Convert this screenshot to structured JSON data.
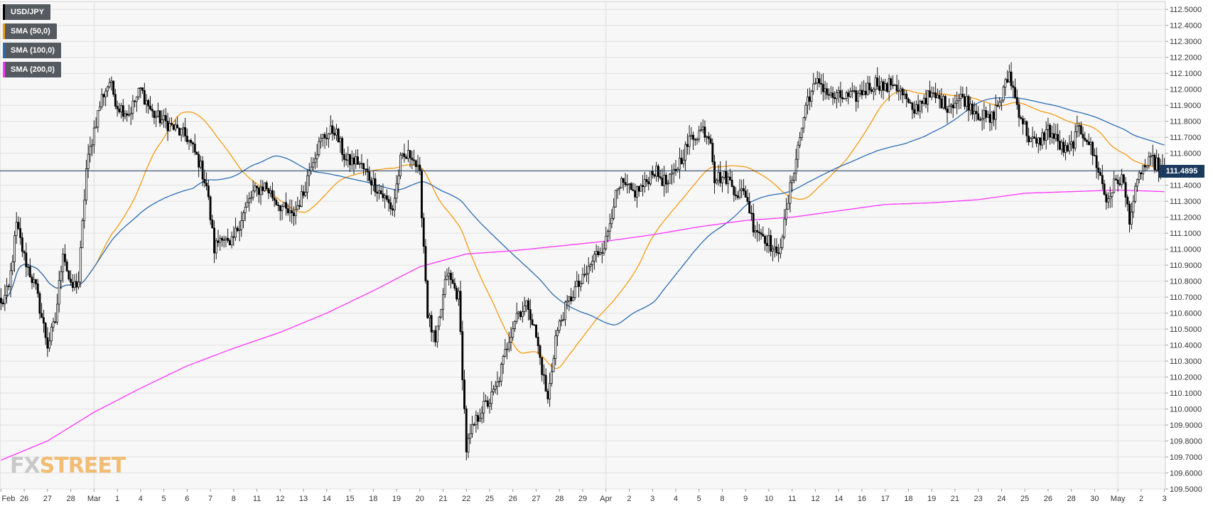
{
  "legend": [
    {
      "label": "USD/JPY",
      "color": "#000000"
    },
    {
      "label": "SMA (50,0)",
      "color": "#f39c12"
    },
    {
      "label": "SMA (100,0)",
      "color": "#2e6db4"
    },
    {
      "label": "SMA (200,0)",
      "color": "#ff33ff"
    }
  ],
  "logo": {
    "fx": "FX",
    "street": "STREET"
  },
  "current_price": {
    "label": "111.4895",
    "value": 111.4895
  },
  "chart_data": {
    "type": "candlestick",
    "title": "",
    "xlabel": "",
    "ylabel": "",
    "ylim": [
      109.5,
      112.55
    ],
    "grid": true,
    "legend_position": "top-left",
    "y_ticks": [
      "109.5000",
      "109.6000",
      "109.7000",
      "109.8000",
      "109.9000",
      "110.0000",
      "110.1000",
      "110.2000",
      "110.3000",
      "110.4000",
      "110.5000",
      "110.6000",
      "110.7000",
      "110.8000",
      "110.9000",
      "111.0000",
      "111.1000",
      "111.2000",
      "111.3000",
      "111.4000",
      "111.5000",
      "111.6000",
      "111.7000",
      "111.8000",
      "111.9000",
      "112.0000",
      "112.1000",
      "112.2000",
      "112.3000",
      "112.4000",
      "112.5000"
    ],
    "x_ticks": [
      "Feb",
      "26",
      "27",
      "28",
      "Mar",
      "1",
      "4",
      "5",
      "6",
      "7",
      "8",
      "11",
      "12",
      "13",
      "14",
      "15",
      "18",
      "19",
      "20",
      "21",
      "22",
      "25",
      "26",
      "27",
      "28",
      "29",
      "Apr",
      "2",
      "3",
      "4",
      "5",
      "8",
      "9",
      "10",
      "11",
      "12",
      "14",
      "16",
      "17",
      "18",
      "19",
      "21",
      "23",
      "24",
      "25",
      "26",
      "28",
      "30",
      "May",
      "2",
      "3"
    ],
    "x_tick_index": [
      0,
      12,
      24,
      36,
      48,
      60,
      72,
      84,
      96,
      108,
      120,
      132,
      144,
      156,
      168,
      180,
      192,
      204,
      216,
      228,
      240,
      252,
      264,
      276,
      288,
      300,
      312,
      324,
      336,
      348,
      360,
      372,
      384,
      396,
      408,
      420,
      432,
      444,
      456,
      468,
      480,
      492,
      504,
      516,
      528,
      540,
      552,
      564,
      576,
      588,
      600
    ],
    "period_separators": [
      48,
      312,
      576
    ],
    "series": [
      {
        "name": "USD/JPY",
        "kind": "price",
        "anchors": [
          [
            0,
            110.65
          ],
          [
            4,
            110.75
          ],
          [
            8,
            111.15
          ],
          [
            12,
            110.95
          ],
          [
            18,
            110.75
          ],
          [
            24,
            110.4
          ],
          [
            28,
            110.55
          ],
          [
            32,
            111.0
          ],
          [
            36,
            110.75
          ],
          [
            40,
            110.8
          ],
          [
            44,
            111.5
          ],
          [
            48,
            111.75
          ],
          [
            52,
            111.95
          ],
          [
            56,
            112.05
          ],
          [
            60,
            111.9
          ],
          [
            66,
            111.85
          ],
          [
            72,
            112.0
          ],
          [
            78,
            111.85
          ],
          [
            84,
            111.8
          ],
          [
            90,
            111.75
          ],
          [
            96,
            111.7
          ],
          [
            102,
            111.55
          ],
          [
            106,
            111.4
          ],
          [
            110,
            111.0
          ],
          [
            114,
            111.1
          ],
          [
            118,
            111.0
          ],
          [
            124,
            111.2
          ],
          [
            130,
            111.35
          ],
          [
            136,
            111.4
          ],
          [
            142,
            111.3
          ],
          [
            150,
            111.2
          ],
          [
            156,
            111.35
          ],
          [
            160,
            111.55
          ],
          [
            166,
            111.7
          ],
          [
            172,
            111.75
          ],
          [
            178,
            111.55
          ],
          [
            184,
            111.55
          ],
          [
            190,
            111.45
          ],
          [
            196,
            111.35
          ],
          [
            202,
            111.25
          ],
          [
            206,
            111.55
          ],
          [
            212,
            111.6
          ],
          [
            216,
            111.45
          ],
          [
            220,
            110.6
          ],
          [
            224,
            110.4
          ],
          [
            230,
            110.85
          ],
          [
            236,
            110.7
          ],
          [
            240,
            109.75
          ],
          [
            244,
            109.9
          ],
          [
            248,
            110.0
          ],
          [
            252,
            110.05
          ],
          [
            256,
            110.15
          ],
          [
            262,
            110.45
          ],
          [
            266,
            110.6
          ],
          [
            272,
            110.65
          ],
          [
            276,
            110.45
          ],
          [
            282,
            110.05
          ],
          [
            286,
            110.45
          ],
          [
            290,
            110.6
          ],
          [
            296,
            110.75
          ],
          [
            300,
            110.8
          ],
          [
            306,
            110.95
          ],
          [
            312,
            111.05
          ],
          [
            316,
            111.3
          ],
          [
            320,
            111.4
          ],
          [
            326,
            111.35
          ],
          [
            332,
            111.4
          ],
          [
            336,
            111.5
          ],
          [
            340,
            111.45
          ],
          [
            344,
            111.4
          ],
          [
            350,
            111.55
          ],
          [
            356,
            111.7
          ],
          [
            362,
            111.75
          ],
          [
            366,
            111.7
          ],
          [
            368,
            111.45
          ],
          [
            374,
            111.45
          ],
          [
            380,
            111.35
          ],
          [
            384,
            111.35
          ],
          [
            388,
            111.15
          ],
          [
            392,
            111.1
          ],
          [
            396,
            111.05
          ],
          [
            400,
            110.95
          ],
          [
            404,
            111.15
          ],
          [
            408,
            111.45
          ],
          [
            412,
            111.7
          ],
          [
            416,
            111.95
          ],
          [
            422,
            112.05
          ],
          [
            428,
            111.95
          ],
          [
            434,
            111.95
          ],
          [
            440,
            111.95
          ],
          [
            446,
            112.0
          ],
          [
            452,
            112.05
          ],
          [
            456,
            112.0
          ],
          [
            460,
            112.05
          ],
          [
            466,
            111.95
          ],
          [
            470,
            111.85
          ],
          [
            476,
            111.95
          ],
          [
            482,
            111.95
          ],
          [
            488,
            111.9
          ],
          [
            496,
            111.95
          ],
          [
            500,
            111.9
          ],
          [
            504,
            111.85
          ],
          [
            510,
            111.8
          ],
          [
            516,
            111.95
          ],
          [
            520,
            112.1
          ],
          [
            524,
            111.9
          ],
          [
            530,
            111.7
          ],
          [
            534,
            111.65
          ],
          [
            540,
            111.75
          ],
          [
            546,
            111.65
          ],
          [
            550,
            111.6
          ],
          [
            556,
            111.75
          ],
          [
            560,
            111.7
          ],
          [
            566,
            111.5
          ],
          [
            570,
            111.3
          ],
          [
            574,
            111.4
          ],
          [
            578,
            111.45
          ],
          [
            582,
            111.2
          ],
          [
            588,
            111.5
          ],
          [
            594,
            111.55
          ],
          [
            600,
            111.49
          ]
        ],
        "color": "#000000"
      },
      {
        "name": "SMA (50,0)",
        "kind": "sma",
        "period": 50,
        "color": "#f39c12"
      },
      {
        "name": "SMA (100,0)",
        "kind": "sma",
        "period": 100,
        "color": "#2e6db4"
      },
      {
        "name": "SMA (200,0)",
        "kind": "anchored",
        "color": "#ff33ff",
        "anchors": [
          [
            0,
            109.68
          ],
          [
            24,
            109.8
          ],
          [
            48,
            109.98
          ],
          [
            72,
            110.13
          ],
          [
            96,
            110.27
          ],
          [
            120,
            110.38
          ],
          [
            144,
            110.48
          ],
          [
            168,
            110.6
          ],
          [
            192,
            110.74
          ],
          [
            216,
            110.89
          ],
          [
            240,
            110.97
          ],
          [
            264,
            110.99
          ],
          [
            288,
            111.02
          ],
          [
            312,
            111.05
          ],
          [
            336,
            111.09
          ],
          [
            360,
            111.14
          ],
          [
            384,
            111.18
          ],
          [
            408,
            111.2
          ],
          [
            432,
            111.24
          ],
          [
            456,
            111.28
          ],
          [
            480,
            111.29
          ],
          [
            504,
            111.31
          ],
          [
            528,
            111.35
          ],
          [
            552,
            111.36
          ],
          [
            576,
            111.37
          ],
          [
            600,
            111.36
          ]
        ]
      }
    ]
  }
}
